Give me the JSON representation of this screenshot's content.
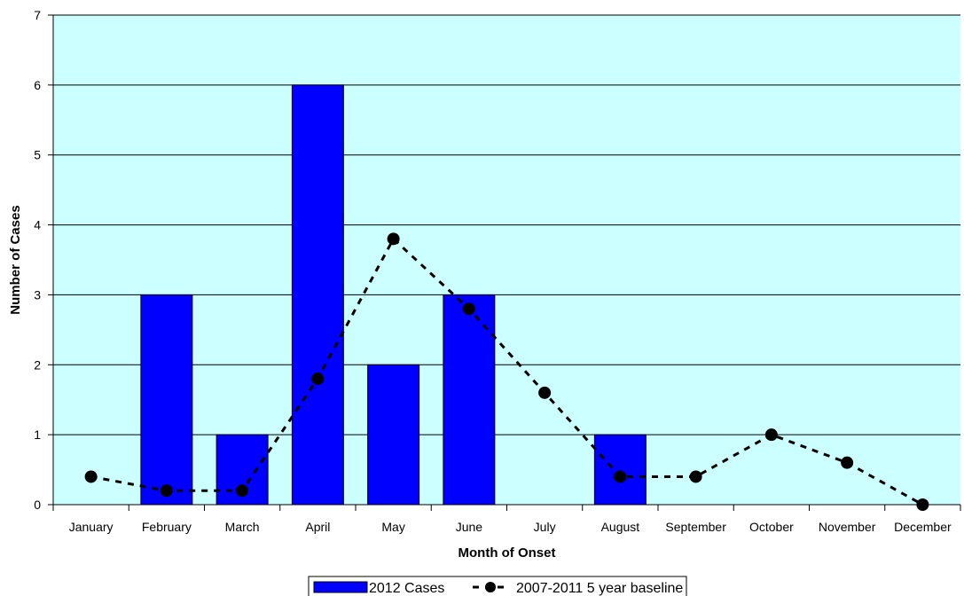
{
  "chart_data": {
    "type": "bar",
    "title": "",
    "xlabel": "Month of Onset",
    "ylabel": "Number of Cases",
    "ylim": [
      0,
      7
    ],
    "yticks": [
      0,
      1,
      2,
      3,
      4,
      5,
      6,
      7
    ],
    "categories": [
      "January",
      "February",
      "March",
      "April",
      "May",
      "June",
      "July",
      "August",
      "September",
      "October",
      "November",
      "December"
    ],
    "series": [
      {
        "name": "2012 Cases",
        "kind": "bar",
        "color": "#0000ff",
        "values": [
          0,
          3,
          1,
          6,
          2,
          3,
          0,
          1,
          0,
          0,
          0,
          0
        ]
      },
      {
        "name": "2007-2011 5 year baseline",
        "kind": "line",
        "style": "dashed",
        "color": "#000000",
        "values": [
          0.4,
          0.2,
          0.2,
          1.8,
          3.8,
          2.8,
          1.6,
          0.4,
          0.4,
          1.0,
          0.6,
          0.0
        ]
      }
    ],
    "plot_background": "#ccffff",
    "grid": true,
    "legend": "bottom-center"
  }
}
